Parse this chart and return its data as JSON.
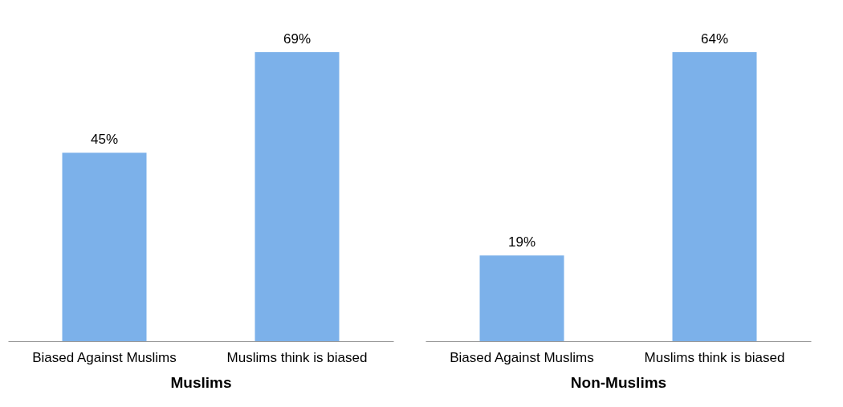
{
  "chart_data": [
    {
      "type": "bar",
      "xlabel": "Muslims",
      "categories": [
        "Biased Against Muslims",
        "Muslims think is biased"
      ],
      "values": [
        45,
        69
      ],
      "value_labels": [
        "45%",
        "69%"
      ],
      "color": "#7cb1ea"
    },
    {
      "type": "bar",
      "xlabel": "Non-Muslims",
      "categories": [
        "Biased Against Muslims",
        "Muslims think is biased"
      ],
      "values": [
        19,
        64
      ],
      "value_labels": [
        "19%",
        "64%"
      ],
      "color": "#7cb1ea"
    }
  ]
}
